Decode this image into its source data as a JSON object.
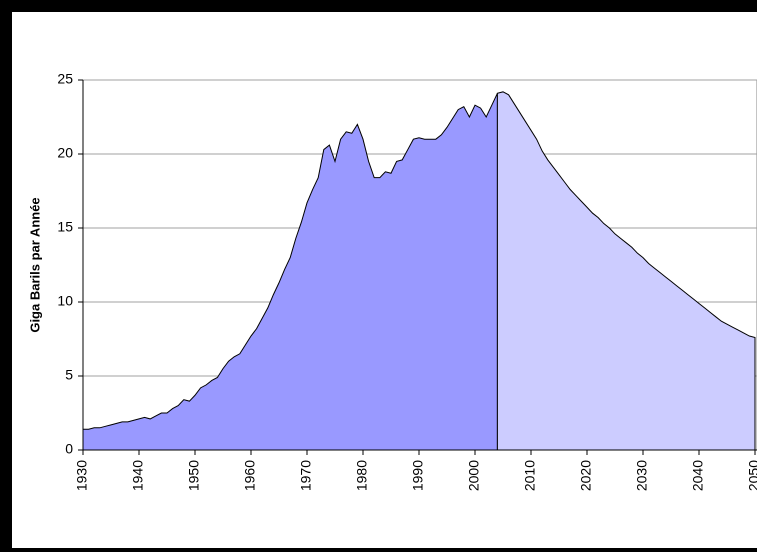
{
  "chart_data": {
    "type": "area",
    "ylabel": "Giga Barils par Année",
    "series": [
      {
        "name": null,
        "color": "#9999ff",
        "x": [
          1930,
          1931,
          1932,
          1933,
          1934,
          1935,
          1936,
          1937,
          1938,
          1939,
          1940,
          1941,
          1942,
          1943,
          1944,
          1945,
          1946,
          1947,
          1948,
          1949,
          1950,
          1951,
          1952,
          1953,
          1954,
          1955,
          1956,
          1957,
          1958,
          1959,
          1960,
          1961,
          1962,
          1963,
          1964,
          1965,
          1966,
          1967,
          1968,
          1969,
          1970,
          1971,
          1972,
          1973,
          1974,
          1975,
          1976,
          1977,
          1978,
          1979,
          1980,
          1981,
          1982,
          1983,
          1984,
          1985,
          1986,
          1987,
          1988,
          1989,
          1990,
          1991,
          1992,
          1993,
          1994,
          1995,
          1996,
          1997,
          1998,
          1999,
          2000,
          2001,
          2002,
          2003,
          2004
        ],
        "values": [
          1.4,
          1.4,
          1.5,
          1.5,
          1.6,
          1.7,
          1.8,
          1.9,
          1.9,
          2.0,
          2.1,
          2.2,
          2.1,
          2.3,
          2.5,
          2.5,
          2.8,
          3.0,
          3.4,
          3.3,
          3.7,
          4.2,
          4.4,
          4.7,
          4.9,
          5.5,
          6.0,
          6.3,
          6.5,
          7.1,
          7.7,
          8.2,
          8.9,
          9.6,
          10.5,
          11.3,
          12.2,
          13.0,
          14.3,
          15.4,
          16.7,
          17.6,
          18.4,
          20.3,
          20.6,
          19.5,
          21.0,
          21.5,
          21.4,
          22.0,
          21.0,
          19.5,
          18.4,
          18.4,
          18.8,
          18.7,
          19.5,
          19.6,
          20.3,
          21.0,
          21.1,
          21.0,
          21.0,
          21.0,
          21.3,
          21.8,
          22.4,
          23.0,
          23.2,
          22.5,
          23.3,
          23.1,
          22.5,
          23.3,
          24.1
        ]
      },
      {
        "name": null,
        "color": "#ccccff",
        "x": [
          2004,
          2005,
          2006,
          2007,
          2008,
          2009,
          2010,
          2011,
          2012,
          2013,
          2014,
          2015,
          2016,
          2017,
          2018,
          2019,
          2020,
          2021,
          2022,
          2023,
          2024,
          2025,
          2026,
          2027,
          2028,
          2029,
          2030,
          2031,
          2032,
          2033,
          2034,
          2035,
          2036,
          2037,
          2038,
          2039,
          2040,
          2041,
          2042,
          2043,
          2044,
          2045,
          2046,
          2047,
          2048,
          2049,
          2050
        ],
        "values": [
          24.1,
          24.2,
          24.0,
          23.4,
          22.8,
          22.2,
          21.6,
          21.0,
          20.2,
          19.6,
          19.1,
          18.6,
          18.1,
          17.6,
          17.2,
          16.8,
          16.4,
          16.0,
          15.7,
          15.3,
          15.0,
          14.6,
          14.3,
          14.0,
          13.7,
          13.3,
          13.0,
          12.6,
          12.3,
          12.0,
          11.7,
          11.4,
          11.1,
          10.8,
          10.5,
          10.2,
          9.9,
          9.6,
          9.3,
          9.0,
          8.7,
          8.5,
          8.3,
          8.1,
          7.9,
          7.7,
          7.6
        ]
      }
    ],
    "xlim": [
      1930,
      2050
    ],
    "xticks": [
      1930,
      1940,
      1950,
      1960,
      1970,
      1980,
      1990,
      2000,
      2010,
      2020,
      2030,
      2040,
      2050
    ],
    "ylim": [
      0,
      25
    ],
    "yticks": [
      0,
      5,
      10,
      15,
      20,
      25
    ],
    "grid": true
  }
}
